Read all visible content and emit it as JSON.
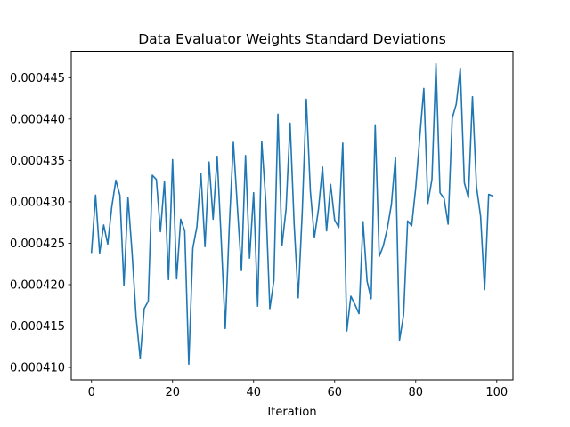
{
  "chart_data": {
    "type": "line",
    "title": "Data Evaluator Weights Standard Deviations",
    "xlabel": "Iteration",
    "ylabel": "",
    "xlim": [
      -5,
      104
    ],
    "ylim": [
      0.0004085,
      0.0004482
    ],
    "xticks": [
      0,
      20,
      40,
      60,
      80,
      100
    ],
    "yticks": [
      0.00041,
      0.000415,
      0.00042,
      0.000425,
      0.00043,
      0.000435,
      0.00044,
      0.000445
    ],
    "ytick_labels": [
      "0.000410",
      "0.000415",
      "0.000420",
      "0.000425",
      "0.000430",
      "0.000435",
      "0.000440",
      "0.000445"
    ],
    "grid": false,
    "legend": "none",
    "series": [
      {
        "color": "#1f77b4",
        "x": [
          0,
          1,
          2,
          3,
          4,
          5,
          6,
          7,
          8,
          9,
          10,
          11,
          12,
          13,
          14,
          15,
          16,
          17,
          18,
          19,
          20,
          21,
          22,
          23,
          24,
          25,
          26,
          27,
          28,
          29,
          30,
          31,
          32,
          33,
          34,
          35,
          36,
          37,
          38,
          39,
          40,
          41,
          42,
          43,
          44,
          45,
          46,
          47,
          48,
          49,
          50,
          51,
          52,
          53,
          54,
          55,
          56,
          57,
          58,
          59,
          60,
          61,
          62,
          63,
          64,
          65,
          66,
          67,
          68,
          69,
          70,
          71,
          72,
          73,
          74,
          75,
          76,
          77,
          78,
          79,
          80,
          81,
          82,
          83,
          84,
          85,
          86,
          87,
          88,
          89,
          90,
          91,
          92,
          93,
          94,
          95,
          96,
          97,
          98,
          99
        ],
        "values": [
          0.0004239,
          0.0004308,
          0.0004238,
          0.0004272,
          0.0004249,
          0.0004294,
          0.0004326,
          0.0004308,
          0.0004199,
          0.0004305,
          0.0004239,
          0.0004161,
          0.0004111,
          0.0004171,
          0.000418,
          0.0004332,
          0.0004327,
          0.0004264,
          0.0004325,
          0.0004206,
          0.0004351,
          0.0004207,
          0.0004279,
          0.0004265,
          0.0004104,
          0.0004244,
          0.000427,
          0.0004334,
          0.0004246,
          0.0004348,
          0.0004279,
          0.0004355,
          0.0004254,
          0.0004147,
          0.0004271,
          0.0004372,
          0.0004293,
          0.0004217,
          0.0004356,
          0.0004232,
          0.0004311,
          0.0004174,
          0.0004373,
          0.0004301,
          0.0004171,
          0.0004205,
          0.0004406,
          0.0004247,
          0.0004291,
          0.0004395,
          0.0004273,
          0.0004184,
          0.0004288,
          0.0004424,
          0.0004313,
          0.0004257,
          0.0004291,
          0.0004342,
          0.0004265,
          0.0004321,
          0.0004278,
          0.0004269,
          0.0004371,
          0.0004144,
          0.0004186,
          0.0004176,
          0.0004165,
          0.0004276,
          0.0004204,
          0.0004183,
          0.0004393,
          0.0004234,
          0.0004247,
          0.0004268,
          0.0004297,
          0.0004354,
          0.0004133,
          0.0004163,
          0.0004277,
          0.0004271,
          0.0004317,
          0.0004378,
          0.0004437,
          0.0004298,
          0.0004327,
          0.0004467,
          0.0004311,
          0.0004304,
          0.0004273,
          0.0004401,
          0.0004418,
          0.0004461,
          0.0004323,
          0.0004305,
          0.0004427,
          0.0004318,
          0.0004283,
          0.0004194,
          0.0004309,
          0.0004307
        ]
      }
    ]
  }
}
